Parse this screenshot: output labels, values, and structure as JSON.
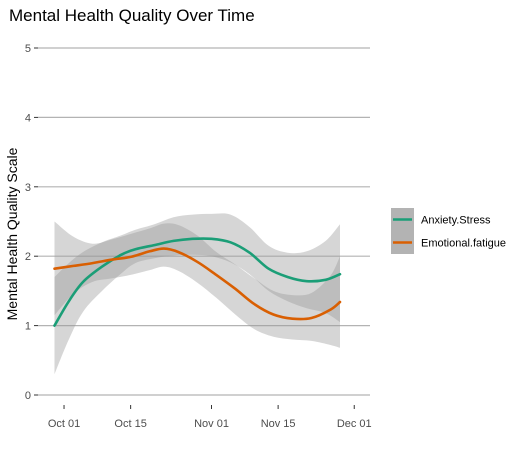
{
  "chart_data": {
    "type": "line",
    "title": "Mental Health Quality Over Time",
    "xlabel": "",
    "ylabel": "Mental Health Quality Scale",
    "x_ticks": [
      "Oct 01",
      "Oct 15",
      "Nov 01",
      "Nov 15",
      "Dec 01"
    ],
    "x_tick_days": [
      0,
      14,
      31,
      45,
      61
    ],
    "xlim_days": [
      -4,
      62
    ],
    "ylim": [
      0,
      5
    ],
    "y_ticks": [
      0,
      1,
      2,
      3,
      4,
      5
    ],
    "grid": "horizontal",
    "legend_position": "right",
    "series": [
      {
        "name": "Anxiety.Stress",
        "color": "#1b9e77",
        "x_days": [
          -2,
          1,
          4,
          8,
          12,
          15,
          19,
          23,
          27,
          31,
          35,
          39,
          43,
          47,
          51,
          55,
          58
        ],
        "values": [
          1.0,
          1.35,
          1.63,
          1.85,
          2.02,
          2.1,
          2.16,
          2.22,
          2.25,
          2.25,
          2.2,
          2.05,
          1.82,
          1.7,
          1.64,
          1.66,
          1.74
        ],
        "ci_lower": [
          0.3,
          0.8,
          1.2,
          1.5,
          1.75,
          1.9,
          1.97,
          2.01,
          2.02,
          2.0,
          1.91,
          1.74,
          1.5,
          1.35,
          1.25,
          1.18,
          1.05
        ],
        "ci_upper": [
          1.7,
          1.9,
          2.06,
          2.2,
          2.3,
          2.38,
          2.46,
          2.56,
          2.6,
          2.61,
          2.6,
          2.42,
          2.15,
          2.05,
          2.07,
          2.22,
          2.46
        ]
      },
      {
        "name": "Emotional.fatigue",
        "color": "#d95f02",
        "x_days": [
          -2,
          2,
          6,
          10,
          14,
          18,
          21,
          24,
          28,
          32,
          36,
          40,
          44,
          48,
          52,
          56,
          58
        ],
        "values": [
          1.82,
          1.86,
          1.9,
          1.95,
          1.99,
          2.07,
          2.11,
          2.06,
          1.92,
          1.73,
          1.53,
          1.31,
          1.16,
          1.1,
          1.11,
          1.23,
          1.34
        ],
        "ci_lower": [
          1.15,
          1.46,
          1.63,
          1.68,
          1.73,
          1.8,
          1.85,
          1.79,
          1.62,
          1.4,
          1.16,
          0.95,
          0.84,
          0.8,
          0.78,
          0.72,
          0.68
        ],
        "ci_upper": [
          2.5,
          2.28,
          2.18,
          2.24,
          2.32,
          2.4,
          2.47,
          2.45,
          2.3,
          2.06,
          1.88,
          1.68,
          1.5,
          1.44,
          1.47,
          1.72,
          2.0
        ]
      }
    ]
  }
}
